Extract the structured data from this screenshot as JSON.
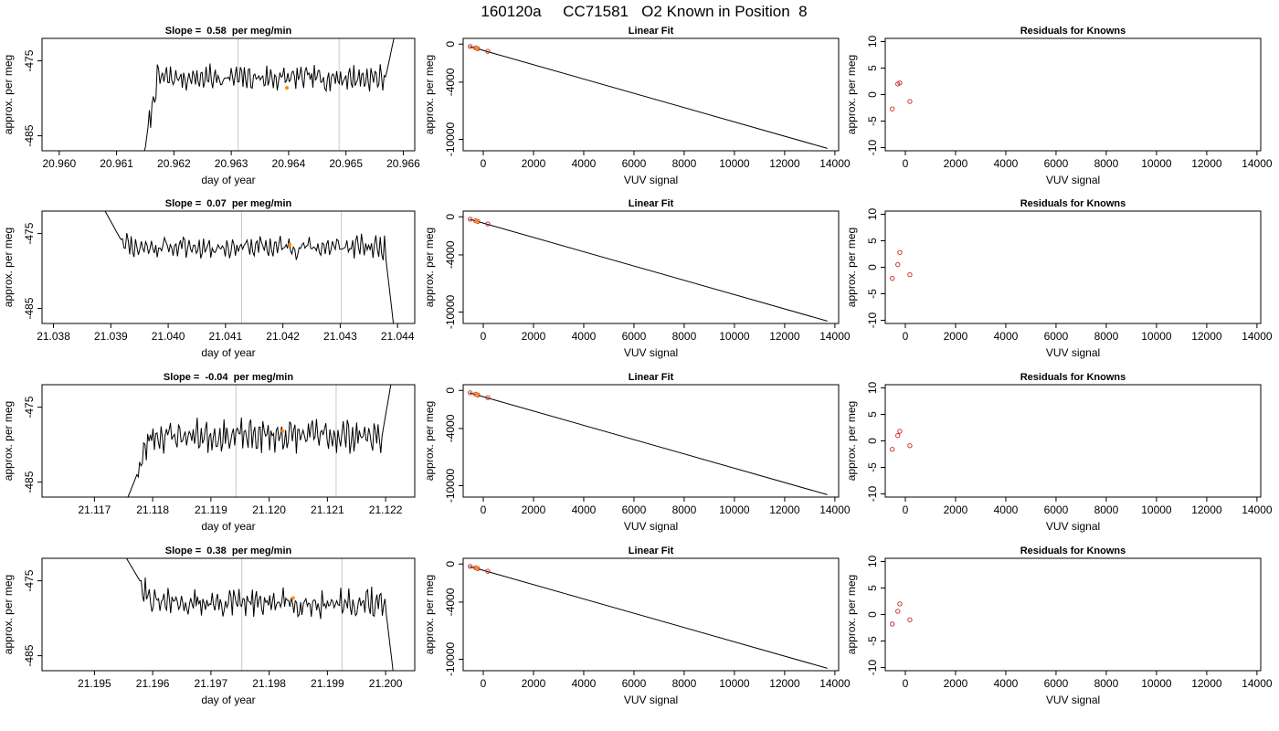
{
  "figure_title": "160120a     CC71581   O2 Known in Position  8",
  "chart_data": [
    {
      "type": "line",
      "title": "Slope =  0.58  per meg/min",
      "xlabel": "day of year",
      "ylabel": "approx. per meg",
      "xlim": [
        20.9597,
        20.9662
      ],
      "ylim": [
        -487,
        -472
      ],
      "xticks": [
        20.96,
        20.961,
        20.962,
        20.963,
        20.964,
        20.965,
        20.966
      ],
      "xtick_labels": [
        "20.960",
        "20.961",
        "20.962",
        "20.963",
        "20.964",
        "20.965",
        "20.966"
      ],
      "yticks": [
        -475,
        -485
      ],
      "ytick_labels": [
        "-475",
        "-485"
      ],
      "vlines": [
        20.96312,
        20.96488
      ],
      "marker": {
        "x": 20.96397,
        "y": -478.6,
        "color": "#ff8c00"
      },
      "series": [
        {
          "x_start": 20.96125,
          "x_end": 20.96585,
          "y_start": -488.5,
          "y_rise": -487.2,
          "mean": -477.3,
          "end_value": -471.5,
          "amplitude": 1.4,
          "seed": 7
        }
      ]
    },
    {
      "type": "scatter",
      "title": "Linear Fit",
      "xlabel": "VUV signal",
      "ylabel": "approx. per meg",
      "xlim": [
        -800,
        14150
      ],
      "ylim": [
        -11200,
        600
      ],
      "xticks": [
        0,
        2000,
        4000,
        6000,
        8000,
        10000,
        12000,
        14000
      ],
      "yticks": [
        0,
        -4000,
        -10000
      ],
      "fit_line": {
        "x": [
          -550,
          13700
        ],
        "y": [
          -250,
          -10950
        ]
      },
      "points": [
        {
          "x": -520,
          "y": -250
        },
        {
          "x": -300,
          "y": -400
        },
        {
          "x": -220,
          "y": -480
        },
        {
          "x": 180,
          "y": -760
        }
      ],
      "highlight": {
        "x": -260,
        "y": -450,
        "color": "#ff8c00"
      }
    },
    {
      "type": "scatter",
      "title": "Residuals for Knowns",
      "xlabel": "VUV signal",
      "ylabel": "approx. per meg",
      "xlim": [
        -800,
        14150
      ],
      "ylim": [
        -10.6,
        10.6
      ],
      "xticks": [
        0,
        2000,
        4000,
        6000,
        8000,
        10000,
        12000,
        14000
      ],
      "yticks": [
        10,
        5,
        0,
        -5,
        -10
      ],
      "points": [
        {
          "x": -520,
          "y": -2.7
        },
        {
          "x": -300,
          "y": 2.0
        },
        {
          "x": -220,
          "y": 2.2
        },
        {
          "x": 180,
          "y": -1.3
        }
      ]
    },
    {
      "type": "line",
      "title": "Slope =  0.07  per meg/min",
      "xlabel": "day of year",
      "ylabel": "approx. per meg",
      "xlim": [
        21.0378,
        21.0443
      ],
      "ylim": [
        -487,
        -472
      ],
      "xticks": [
        21.038,
        21.039,
        21.04,
        21.041,
        21.042,
        21.043,
        21.044
      ],
      "xtick_labels": [
        "21.038",
        "21.039",
        "21.040",
        "21.041",
        "21.042",
        "21.043",
        "21.044"
      ],
      "yticks": [
        -475,
        -485
      ],
      "ytick_labels": [
        "-475",
        "-485"
      ],
      "vlines": [
        21.04128,
        21.04302
      ],
      "marker": {
        "x": 21.04212,
        "y": -476.5,
        "color": "#ff8c00"
      },
      "series": [
        {
          "x_start": 21.0389,
          "x_end": 21.04395,
          "y_start": -472.0,
          "y_rise": -475.5,
          "mean": -476.8,
          "end_value": -488.5,
          "amplitude": 1.3,
          "seed": 11
        }
      ]
    },
    {
      "type": "scatter",
      "title": "Linear Fit",
      "xlabel": "VUV signal",
      "ylabel": "approx. per meg",
      "xlim": [
        -800,
        14150
      ],
      "ylim": [
        -11200,
        600
      ],
      "xticks": [
        0,
        2000,
        4000,
        6000,
        8000,
        10000,
        12000,
        14000
      ],
      "yticks": [
        0,
        -4000,
        -10000
      ],
      "fit_line": {
        "x": [
          -550,
          13700
        ],
        "y": [
          -250,
          -10950
        ]
      },
      "points": [
        {
          "x": -520,
          "y": -250
        },
        {
          "x": -300,
          "y": -420
        },
        {
          "x": -220,
          "y": -480
        },
        {
          "x": 180,
          "y": -760
        }
      ],
      "highlight": {
        "x": -260,
        "y": -450,
        "color": "#ff8c00"
      }
    },
    {
      "type": "scatter",
      "title": "Residuals for Knowns",
      "xlabel": "VUV signal",
      "ylabel": "approx. per meg",
      "xlim": [
        -800,
        14150
      ],
      "ylim": [
        -10.6,
        10.6
      ],
      "xticks": [
        0,
        2000,
        4000,
        6000,
        8000,
        10000,
        12000,
        14000
      ],
      "yticks": [
        10,
        5,
        0,
        -5,
        -10
      ],
      "points": [
        {
          "x": -520,
          "y": -2.1
        },
        {
          "x": -300,
          "y": 0.5
        },
        {
          "x": -220,
          "y": 2.8
        },
        {
          "x": 180,
          "y": -1.4
        }
      ]
    },
    {
      "type": "line",
      "title": "Slope =  -0.04  per meg/min",
      "xlabel": "day of year",
      "ylabel": "approx. per meg",
      "xlim": [
        21.1161,
        21.1225
      ],
      "ylim": [
        -487,
        -472
      ],
      "xticks": [
        21.117,
        21.118,
        21.119,
        21.12,
        21.121,
        21.122
      ],
      "xtick_labels": [
        "21.117",
        "21.118",
        "21.119",
        "21.120",
        "21.121",
        "21.122"
      ],
      "yticks": [
        -475,
        -485
      ],
      "ytick_labels": [
        "-475",
        "-485"
      ],
      "vlines": [
        21.11943,
        21.12115
      ],
      "marker": {
        "x": 21.12023,
        "y": -478.2,
        "color": "#ff8c00"
      },
      "series": [
        {
          "x_start": 21.1175,
          "x_end": 21.1221,
          "y_start": -488.5,
          "y_rise": -484.0,
          "mean": -478.8,
          "end_value": -471.5,
          "amplitude": 1.8,
          "seed": 23
        }
      ]
    },
    {
      "type": "scatter",
      "title": "Linear Fit",
      "xlabel": "VUV signal",
      "ylabel": "approx. per meg",
      "xlim": [
        -800,
        14150
      ],
      "ylim": [
        -11200,
        600
      ],
      "xticks": [
        0,
        2000,
        4000,
        6000,
        8000,
        10000,
        12000,
        14000
      ],
      "yticks": [
        0,
        -4000,
        -10000
      ],
      "fit_line": {
        "x": [
          -550,
          13700
        ],
        "y": [
          -250,
          -10950
        ]
      },
      "points": [
        {
          "x": -520,
          "y": -250
        },
        {
          "x": -300,
          "y": -400
        },
        {
          "x": -220,
          "y": -480
        },
        {
          "x": 180,
          "y": -760
        }
      ],
      "highlight": {
        "x": -260,
        "y": -450,
        "color": "#ff8c00"
      }
    },
    {
      "type": "scatter",
      "title": "Residuals for Knowns",
      "xlabel": "VUV signal",
      "ylabel": "approx. per meg",
      "xlim": [
        -800,
        14150
      ],
      "ylim": [
        -10.6,
        10.6
      ],
      "xticks": [
        0,
        2000,
        4000,
        6000,
        8000,
        10000,
        12000,
        14000
      ],
      "yticks": [
        10,
        5,
        0,
        -5,
        -10
      ],
      "points": [
        {
          "x": -520,
          "y": -1.6
        },
        {
          "x": -300,
          "y": 1.0
        },
        {
          "x": -220,
          "y": 1.8
        },
        {
          "x": 180,
          "y": -0.9
        }
      ]
    },
    {
      "type": "line",
      "title": "Slope =  0.38  per meg/min",
      "xlabel": "day of year",
      "ylabel": "approx. per meg",
      "xlim": [
        21.1941,
        21.2005
      ],
      "ylim": [
        -487,
        -472
      ],
      "xticks": [
        21.195,
        21.196,
        21.197,
        21.198,
        21.199,
        21.2
      ],
      "xtick_labels": [
        "21.195",
        "21.196",
        "21.197",
        "21.198",
        "21.199",
        "21.200"
      ],
      "yticks": [
        -475,
        -485
      ],
      "ytick_labels": [
        "-475",
        "-485"
      ],
      "vlines": [
        21.19753,
        21.19925
      ],
      "marker": {
        "x": 21.19841,
        "y": -477.3,
        "color": "#ff8c00"
      },
      "series": [
        {
          "x_start": 21.19555,
          "x_end": 21.20015,
          "y_start": -472.0,
          "y_rise": -475.0,
          "mean": -478.0,
          "end_value": -488.5,
          "amplitude": 1.6,
          "seed": 31
        }
      ]
    },
    {
      "type": "scatter",
      "title": "Linear Fit",
      "xlabel": "VUV signal",
      "ylabel": "approx. per meg",
      "xlim": [
        -800,
        14150
      ],
      "ylim": [
        -11200,
        600
      ],
      "xticks": [
        0,
        2000,
        4000,
        6000,
        8000,
        10000,
        12000,
        14000
      ],
      "yticks": [
        0,
        -4000,
        -10000
      ],
      "fit_line": {
        "x": [
          -550,
          13700
        ],
        "y": [
          -250,
          -10950
        ]
      },
      "points": [
        {
          "x": -520,
          "y": -250
        },
        {
          "x": -300,
          "y": -400
        },
        {
          "x": -220,
          "y": -480
        },
        {
          "x": 180,
          "y": -760
        }
      ],
      "highlight": {
        "x": -260,
        "y": -450,
        "color": "#ff8c00"
      }
    },
    {
      "type": "scatter",
      "title": "Residuals for Knowns",
      "xlabel": "VUV signal",
      "ylabel": "approx. per meg",
      "xlim": [
        -800,
        14150
      ],
      "ylim": [
        -10.6,
        10.6
      ],
      "xticks": [
        0,
        2000,
        4000,
        6000,
        8000,
        10000,
        12000,
        14000
      ],
      "yticks": [
        10,
        5,
        0,
        -5,
        -10
      ],
      "points": [
        {
          "x": -520,
          "y": -1.8
        },
        {
          "x": -300,
          "y": 0.6
        },
        {
          "x": -220,
          "y": 2.0
        },
        {
          "x": 180,
          "y": -1.0
        }
      ]
    }
  ]
}
